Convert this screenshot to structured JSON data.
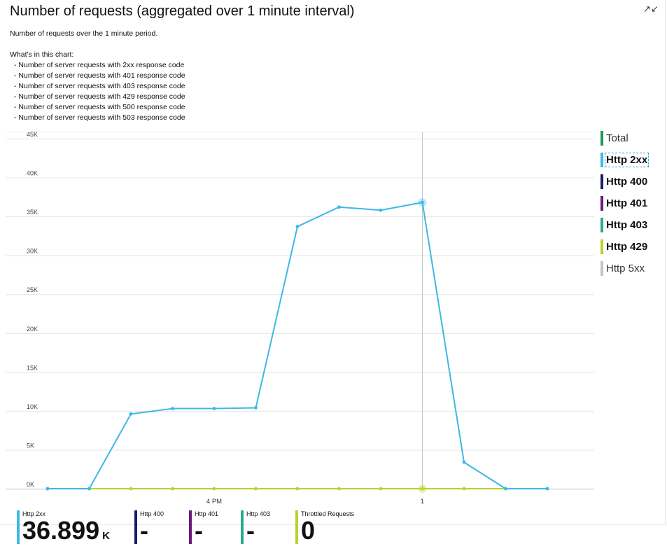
{
  "header": {
    "title": "Number of requests (aggregated over 1 minute interval)",
    "expand_icon": "collapse-arrows-icon"
  },
  "description": {
    "summary": "Number of requests over the 1 minute period.",
    "heading": "What's in this chart:",
    "items": [
      "- Number of server requests with 2xx response code",
      "- Number of server requests with 401 response code",
      "- Number of server requests with 403 response code",
      "- Number of server requests with 429 response code",
      "- Number of server requests with 500 response code",
      "- Number of server requests with 503 response code"
    ]
  },
  "legend": [
    {
      "label": "Total",
      "color": "#1f9a53",
      "bold": false
    },
    {
      "label": "Http 2xx",
      "color": "#3cb8e6",
      "bold": true,
      "focused": true
    },
    {
      "label": "Http 400",
      "color": "#1a1a6e",
      "bold": true
    },
    {
      "label": "Http 401",
      "color": "#6a1b7c",
      "bold": true
    },
    {
      "label": "Http 403",
      "color": "#2aaa8a",
      "bold": true
    },
    {
      "label": "Http 429",
      "color": "#b8d22e",
      "bold": true
    },
    {
      "label": "Http 5xx",
      "color": "#c0c4c8",
      "bold": false
    }
  ],
  "tiles": [
    {
      "label": "Http 2xx",
      "value": "36.899",
      "unit": "K",
      "color": "#3cb8e6"
    },
    {
      "label": "Http 400",
      "value": "-",
      "unit": "",
      "color": "#1a1a6e"
    },
    {
      "label": "Http 401",
      "value": "-",
      "unit": "",
      "color": "#6a1b7c"
    },
    {
      "label": "Http 403",
      "value": "-",
      "unit": "",
      "color": "#2aaa8a"
    },
    {
      "label": "Throttled Requests",
      "value": "0",
      "unit": "",
      "color": "#b8d22e"
    }
  ],
  "chart_data": {
    "type": "line",
    "ylim": [
      0,
      45000
    ],
    "yticks": [
      0,
      5000,
      10000,
      15000,
      20000,
      25000,
      30000,
      35000,
      40000,
      45000
    ],
    "ytick_labels": [
      "0K",
      "5K",
      "10K",
      "15K",
      "20K",
      "25K",
      "30K",
      "35K",
      "40K",
      "45K"
    ],
    "x_tick_positions": [
      4,
      9
    ],
    "x_tick_labels": [
      "4 PM",
      "1"
    ],
    "cursor_index": 9,
    "grid": true,
    "series": [
      {
        "name": "Http 2xx",
        "color": "#3cb8e6",
        "values": [
          0,
          0,
          9600,
          10300,
          10300,
          10400,
          33700,
          36200,
          35800,
          36800,
          3400,
          0,
          0
        ]
      },
      {
        "name": "Http 429",
        "color": "#b8d22e",
        "values": [
          0,
          0,
          0,
          0,
          0,
          0,
          0,
          0,
          0,
          0,
          0,
          0,
          0
        ]
      }
    ]
  }
}
